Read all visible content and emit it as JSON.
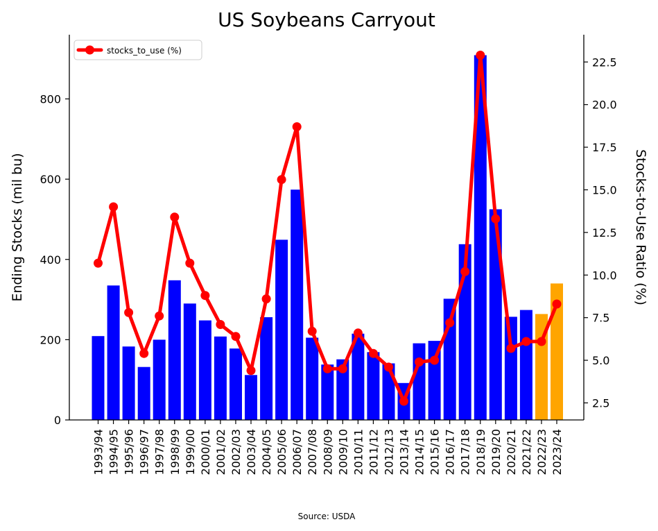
{
  "chart_data": {
    "type": "bar",
    "title": "US Soybeans Carryout",
    "ylabel": "Ending Stocks (mil bu)",
    "y2label": "Stocks-to-Use Ratio (%)",
    "source": "Source: USDA",
    "ylim": [
      0,
      960
    ],
    "y2lim": [
      1.5,
      24.1
    ],
    "yticks": [
      0,
      200,
      400,
      600,
      800
    ],
    "y2ticks": [
      "2.5",
      "5.0",
      "7.5",
      "10.0",
      "12.5",
      "15.0",
      "17.5",
      "20.0",
      "22.5"
    ],
    "legend_position": "top-left",
    "categories": [
      "1993/94",
      "1994/95",
      "1995/96",
      "1996/97",
      "1997/98",
      "1998/99",
      "1999/00",
      "2000/01",
      "2001/02",
      "2002/03",
      "2003/04",
      "2004/05",
      "2005/06",
      "2006/07",
      "2007/08",
      "2008/09",
      "2009/10",
      "2010/11",
      "2011/12",
      "2012/13",
      "2013/14",
      "2014/15",
      "2015/16",
      "2016/17",
      "2017/18",
      "2018/19",
      "2019/20",
      "2020/21",
      "2021/22",
      "2022/23",
      "2023/24"
    ],
    "series": [
      {
        "kind": "bar",
        "values": [
          209,
          335,
          183,
          132,
          200,
          348,
          290,
          248,
          208,
          178,
          112,
          256,
          449,
          574,
          205,
          138,
          151,
          215,
          169,
          141,
          92,
          191,
          197,
          302,
          438,
          909,
          525,
          257,
          274,
          264,
          340
        ],
        "color": "#0000ff",
        "highlight_color": "#ffa500",
        "highlight_from_index": 29
      },
      {
        "kind": "line",
        "name": "stocks_to_use (%)",
        "axis": "right",
        "values": [
          10.7,
          14.0,
          7.8,
          5.4,
          7.6,
          13.4,
          10.7,
          8.8,
          7.1,
          6.4,
          4.4,
          8.6,
          15.6,
          18.7,
          6.7,
          4.5,
          4.5,
          6.6,
          5.4,
          4.6,
          2.6,
          4.9,
          5.0,
          7.2,
          10.2,
          22.9,
          13.3,
          5.7,
          6.1,
          6.1,
          8.3
        ],
        "color": "#ff0000"
      }
    ]
  }
}
